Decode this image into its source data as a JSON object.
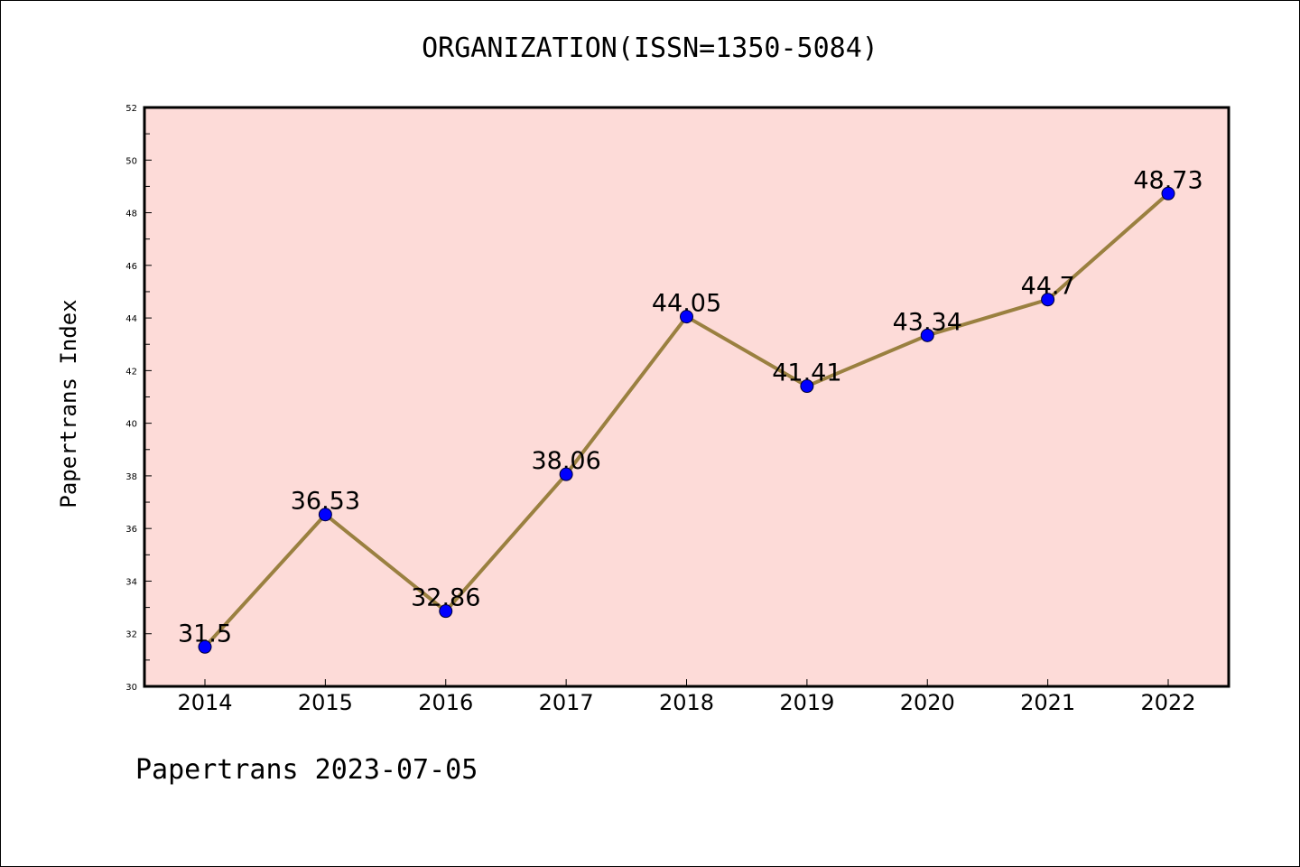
{
  "chart_data": {
    "type": "line",
    "title": "ORGANIZATION(ISSN=1350-5084)",
    "xlabel": "",
    "ylabel": "Papertrans Index",
    "categories": [
      "2014",
      "2015",
      "2016",
      "2017",
      "2018",
      "2019",
      "2020",
      "2021",
      "2022"
    ],
    "series": [
      {
        "values": [
          31.5,
          36.53,
          32.86,
          38.06,
          44.05,
          41.41,
          43.34,
          44.7,
          48.73
        ],
        "labels": [
          "31.5",
          "36.53",
          "32.86",
          "38.06",
          "44.05",
          "41.41",
          "43.34",
          "44.7",
          "48.73"
        ]
      }
    ],
    "ylim": [
      30,
      52
    ],
    "yticks": [
      "30",
      "32",
      "34",
      "36",
      "38",
      "40",
      "42",
      "44",
      "46",
      "48",
      "50",
      "52"
    ],
    "grid": false,
    "legend": "none",
    "colors": {
      "plot_background": "#fddbd8",
      "line": "#9a8040",
      "marker": "#0000ff"
    }
  },
  "footer": "Papertrans 2023-07-05"
}
